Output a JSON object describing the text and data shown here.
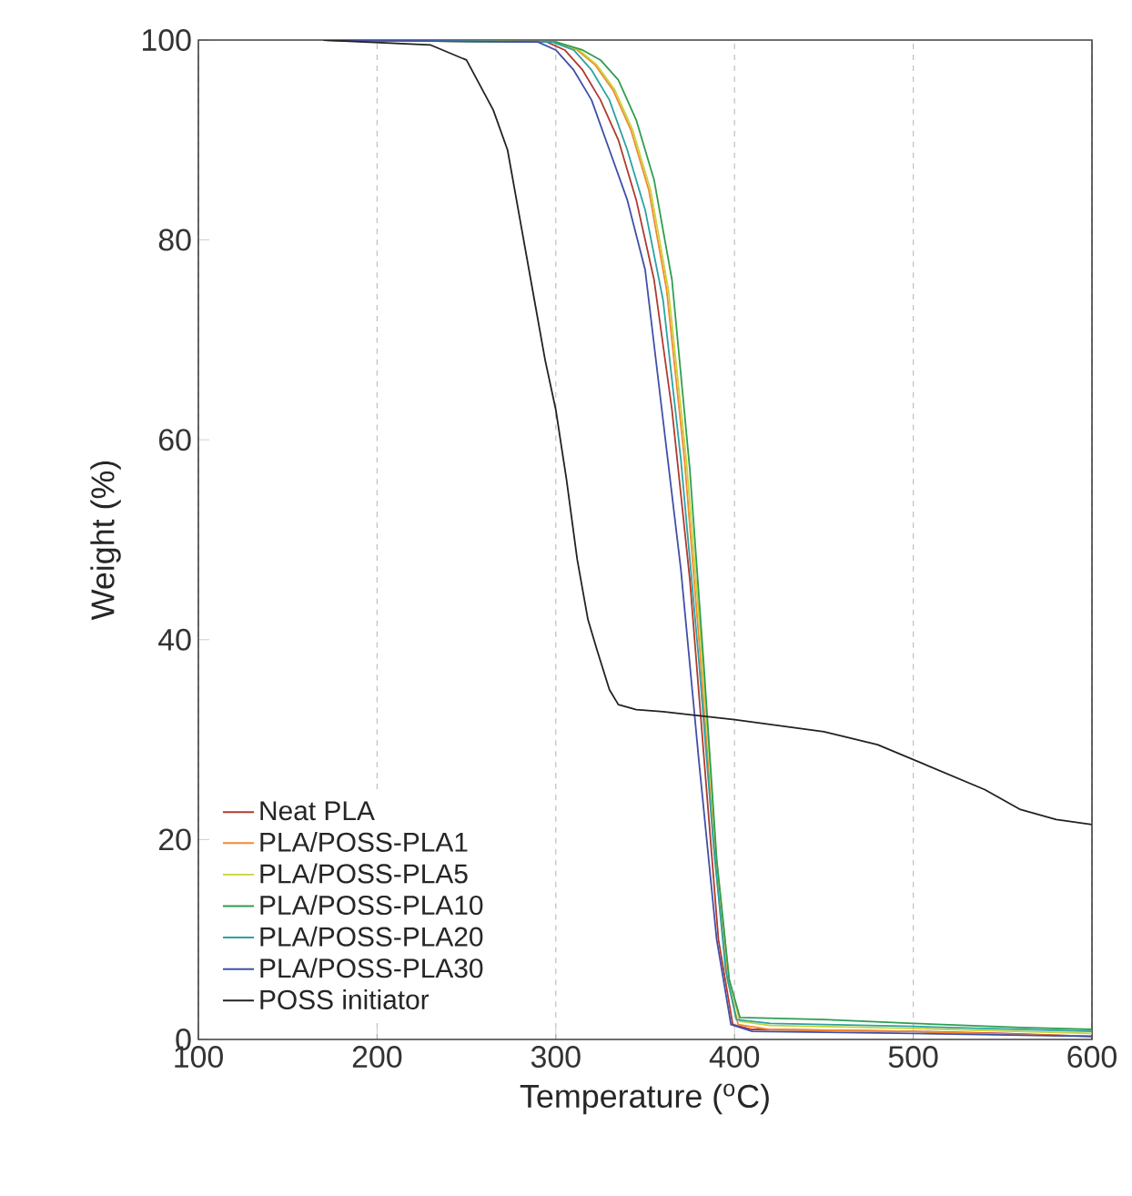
{
  "chart_data": {
    "type": "line",
    "xlabel": "Temperature ($^{o}$C)",
    "ylabel": "Weight (%)",
    "xlim": [
      100,
      600
    ],
    "ylim": [
      0,
      100
    ],
    "xticks": [
      100,
      200,
      300,
      400,
      500,
      600
    ],
    "yticks": [
      0,
      20,
      40,
      60,
      80,
      100
    ],
    "grid": "x",
    "legend": "bottom left",
    "marker": "none",
    "line_style": "solid",
    "series": [
      {
        "name": "Neat PLA",
        "color": "#b03a2e",
        "x": [
          170,
          295,
          305,
          315,
          325,
          335,
          345,
          355,
          365,
          375,
          383,
          391,
          399,
          410,
          500,
          550,
          600
        ],
        "values": [
          100,
          99.8,
          99,
          97,
          94,
          90,
          84,
          76,
          63,
          46,
          28,
          10,
          1.5,
          1,
          0.8,
          0.6,
          0.3
        ]
      },
      {
        "name": "PLA/POSS-PLA1",
        "color": "#f28a30",
        "x": [
          170,
          300,
          312,
          322,
          332,
          342,
          352,
          362,
          372,
          381,
          389,
          396,
          402,
          420,
          500,
          600
        ],
        "values": [
          100,
          99.8,
          99,
          97.5,
          95,
          91,
          85,
          75,
          58,
          38,
          18,
          6,
          1.5,
          1,
          0.8,
          0.3
        ]
      },
      {
        "name": "PLA/POSS-PLA5",
        "color": "#c8d23a",
        "x": [
          170,
          300,
          313,
          323,
          333,
          343,
          353,
          363,
          373,
          382,
          390,
          397,
          403,
          420,
          500,
          600
        ],
        "values": [
          100,
          99.8,
          99,
          97.5,
          95,
          91,
          85,
          75,
          58,
          38,
          18,
          6,
          1.8,
          1.4,
          1.1,
          0.6
        ]
      },
      {
        "name": "PLA/POSS-PLA10",
        "color": "#2e9e4f",
        "x": [
          170,
          300,
          315,
          325,
          335,
          345,
          355,
          365,
          375,
          383,
          390,
          397,
          403,
          450,
          500,
          560,
          600
        ],
        "values": [
          100,
          99.8,
          99,
          98,
          96,
          92,
          86,
          76,
          57,
          37,
          18,
          6,
          2.2,
          2,
          1.6,
          1.2,
          1
        ]
      },
      {
        "name": "PLA/POSS-PLA20",
        "color": "#2aa3a3",
        "x": [
          170,
          298,
          310,
          320,
          330,
          340,
          350,
          360,
          370,
          380,
          388,
          395,
          401,
          420,
          500,
          600
        ],
        "values": [
          100,
          99.8,
          99,
          97,
          94,
          89,
          83,
          74,
          58,
          38,
          20,
          7,
          2,
          1.6,
          1.3,
          0.8
        ]
      },
      {
        "name": "PLA/POSS-PLA30",
        "color": "#3f4fa8",
        "x": [
          170,
          290,
          300,
          310,
          320,
          330,
          340,
          350,
          360,
          370,
          380,
          390,
          398,
          410,
          500,
          600
        ],
        "values": [
          100,
          99.8,
          99,
          97,
          94,
          89,
          84,
          77,
          62,
          47,
          28,
          10,
          1.5,
          0.8,
          0.6,
          0.3
        ]
      },
      {
        "name": "POSS initiator",
        "color": "#222222",
        "x": [
          170,
          230,
          250,
          265,
          273,
          280,
          288,
          294,
          300,
          306,
          312,
          318,
          323,
          330,
          335,
          345,
          360,
          400,
          450,
          480,
          500,
          520,
          540,
          560,
          580,
          600
        ],
        "values": [
          100,
          99.5,
          98,
          93,
          89,
          82,
          74,
          68,
          63,
          56,
          48,
          42,
          39,
          35,
          33.5,
          33,
          32.8,
          32,
          30.8,
          29.5,
          28,
          26.5,
          25,
          23,
          22,
          21.5
        ]
      }
    ]
  }
}
